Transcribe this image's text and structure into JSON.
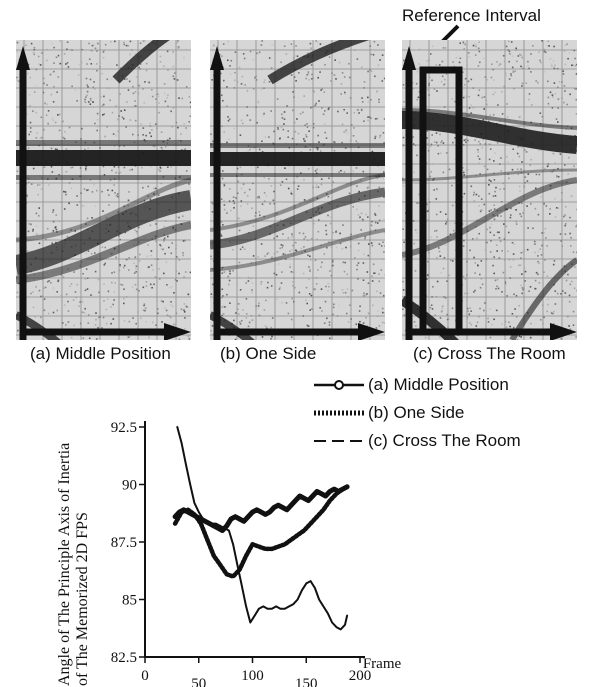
{
  "reference_label": "Reference Interval",
  "panels": [
    {
      "caption": "(a) Middle Position"
    },
    {
      "caption": "(b) One Side"
    },
    {
      "caption": "(c) Cross The Room"
    }
  ],
  "legend": [
    {
      "label": "(a) Middle Position"
    },
    {
      "label": "(b) One Side"
    },
    {
      "label": "(c) Cross The Room"
    }
  ],
  "colors": {
    "ink": "#111111",
    "grid": "#9a9a9a"
  },
  "chart_data": {
    "type": "line",
    "xlabel": "Frame",
    "ylabel_line1": "Angle of The Principle Axis of Inertia",
    "ylabel_line2": "of The Memorized 2D FPS",
    "xlim": [
      0,
      200
    ],
    "ylim": [
      82.5,
      92.5
    ],
    "xticks": [
      0,
      50,
      100,
      150,
      200
    ],
    "yticks": [
      82.5,
      85,
      87.5,
      90,
      92.5
    ],
    "ytick_labels": [
      "82.5",
      "85",
      "87.5",
      "90",
      "92.5"
    ],
    "series": [
      {
        "name": "(a) Middle Position",
        "style": "thick",
        "x": [
          28,
          32,
          36,
          40,
          44,
          48,
          52,
          56,
          60,
          64,
          68,
          72,
          76,
          80,
          84,
          88,
          92,
          96,
          100,
          104,
          108,
          112,
          116,
          120,
          124,
          128,
          132,
          136,
          140,
          144,
          148,
          152,
          156,
          160,
          164,
          168,
          172,
          176,
          180,
          184,
          188
        ],
        "y": [
          88.6,
          88.8,
          88.9,
          88.8,
          88.7,
          88.6,
          88.5,
          88.4,
          88.3,
          88.2,
          88.1,
          88.0,
          88.2,
          88.5,
          88.6,
          88.5,
          88.4,
          88.6,
          88.8,
          88.9,
          88.8,
          88.7,
          88.8,
          89.0,
          89.1,
          89.0,
          88.9,
          89.1,
          89.3,
          89.5,
          89.4,
          89.3,
          89.5,
          89.7,
          89.6,
          89.5,
          89.7,
          89.8,
          89.7,
          89.8,
          89.9
        ]
      },
      {
        "name": "(b) One Side",
        "style": "dotted",
        "x": [
          28,
          34,
          40,
          46,
          52,
          58,
          64,
          70,
          76,
          82,
          88,
          94,
          100,
          106,
          112,
          118,
          124,
          130,
          136,
          142,
          148,
          154,
          160,
          166,
          172,
          178,
          184,
          188
        ],
        "y": [
          88.3,
          88.8,
          88.9,
          88.7,
          88.3,
          87.6,
          86.9,
          86.5,
          86.1,
          86.0,
          86.3,
          86.9,
          87.4,
          87.3,
          87.2,
          87.2,
          87.3,
          87.4,
          87.6,
          87.8,
          88.0,
          88.3,
          88.6,
          88.9,
          89.3,
          89.6,
          89.8,
          89.9
        ]
      },
      {
        "name": "(c) Cross The Room",
        "style": "thin",
        "x": [
          30,
          34,
          38,
          42,
          46,
          50,
          54,
          58,
          62,
          66,
          70,
          74,
          78,
          82,
          86,
          90,
          94,
          98,
          102,
          106,
          110,
          114,
          118,
          122,
          126,
          130,
          134,
          138,
          142,
          146,
          150,
          154,
          158,
          162,
          166,
          170,
          174,
          178,
          182,
          186,
          188
        ],
        "y": [
          92.5,
          91.8,
          90.9,
          90.0,
          89.2,
          88.8,
          88.5,
          88.4,
          88.3,
          88.3,
          88.2,
          88.1,
          88.0,
          87.4,
          86.5,
          85.6,
          84.7,
          84.0,
          84.3,
          84.6,
          84.7,
          84.6,
          84.6,
          84.7,
          84.6,
          84.6,
          84.7,
          84.8,
          85.0,
          85.4,
          85.7,
          85.8,
          85.5,
          85.0,
          84.7,
          84.4,
          84.0,
          83.8,
          83.7,
          83.9,
          84.3
        ]
      }
    ]
  }
}
